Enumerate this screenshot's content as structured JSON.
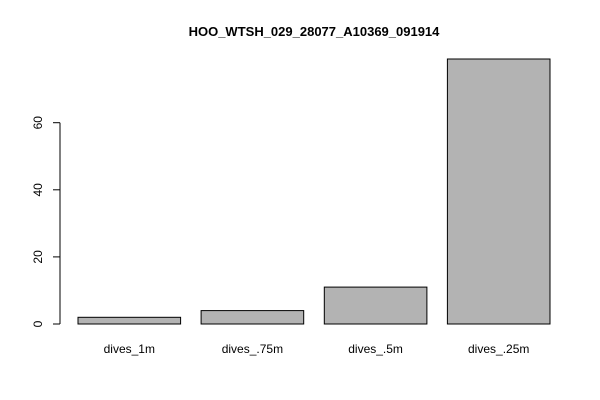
{
  "chart_data": {
    "type": "bar",
    "title": "HOO_WTSH_029_28077_A10369_091914",
    "categories": [
      "dives_1m",
      "dives_.75m",
      "dives_.5m",
      "dives_.25m"
    ],
    "values": [
      2,
      4,
      11,
      79
    ],
    "ylim": [
      0,
      79
    ],
    "yticks": [
      0,
      20,
      40,
      60
    ],
    "grid": false,
    "legend": "none",
    "bar_color": "#b3b3b3",
    "bar_border_color": "#000000"
  }
}
